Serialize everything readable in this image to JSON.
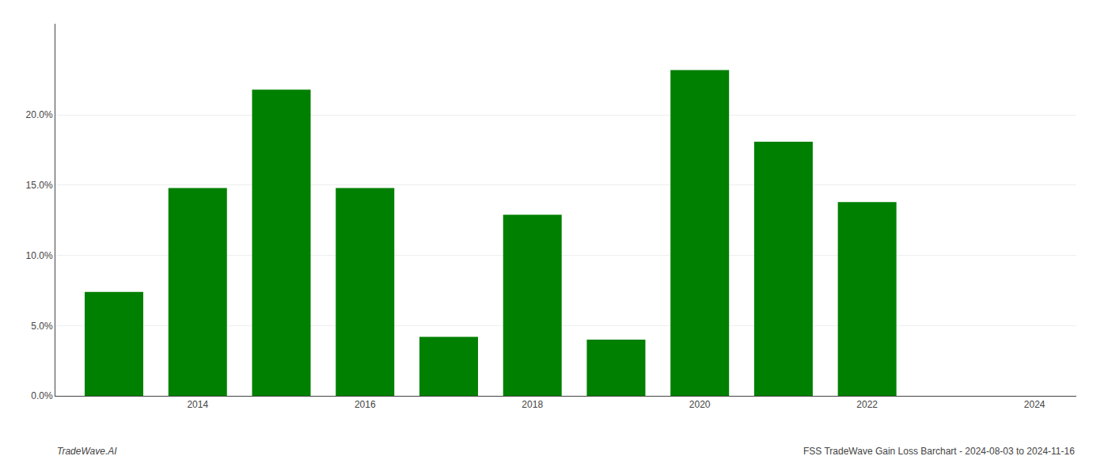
{
  "chart_data": {
    "type": "bar",
    "x": [
      2013,
      2014,
      2015,
      2016,
      2017,
      2018,
      2019,
      2020,
      2021,
      2022,
      2023
    ],
    "values": [
      0.074,
      0.148,
      0.218,
      0.148,
      0.042,
      0.129,
      0.04,
      0.232,
      0.181,
      0.138,
      0.0
    ],
    "color": "#008000",
    "xlim": [
      2012.3,
      2024.5
    ],
    "xticks": [
      2014,
      2016,
      2018,
      2020,
      2022,
      2024
    ],
    "ylim": [
      0.0,
      0.265
    ],
    "yticks": [
      {
        "value": 0.0,
        "label": "0.0%"
      },
      {
        "value": 0.05,
        "label": "5.0%"
      },
      {
        "value": 0.1,
        "label": "10.0%"
      },
      {
        "value": 0.15,
        "label": "15.0%"
      },
      {
        "value": 0.2,
        "label": "20.0%"
      }
    ],
    "grid": true,
    "annotations": [
      "TradeWave.AI",
      "FSS TradeWave Gain Loss Barchart - 2024-08-03 to 2024-11-16"
    ]
  }
}
